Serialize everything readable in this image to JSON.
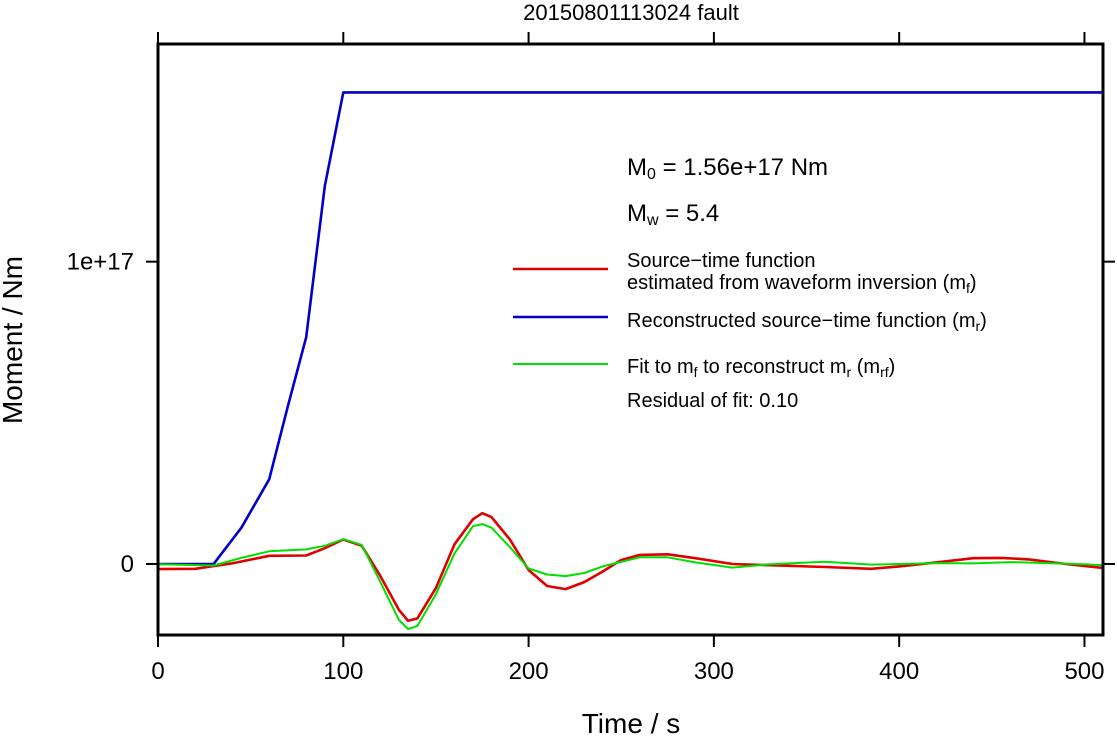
{
  "chart_data": {
    "type": "line",
    "title": "20150801113024 fault",
    "xlabel": "Time / s",
    "ylabel": "Moment / Nm",
    "xlim": [
      0,
      510
    ],
    "ylim": [
      -2.35e+16,
      1.72e+17
    ],
    "x_ticks": [
      0,
      100,
      200,
      300,
      400,
      500
    ],
    "x_tick_labels": [
      "0",
      "100",
      "200",
      "300",
      "400",
      "500"
    ],
    "y_ticks": [
      0,
      1e+17
    ],
    "y_tick_labels": [
      "0",
      "1e+17"
    ],
    "grid": false,
    "legend_position": "right",
    "annotations": {
      "m0": {
        "symbol": "M",
        "sub": "0",
        "text": " = 1.56e+17 Nm"
      },
      "mw": {
        "symbol": "M",
        "sub": "w",
        "text": " = 5.4"
      },
      "residual": "Residual of fit: 0.10"
    },
    "legend": [
      {
        "color": "#e00000",
        "lines": [
          [
            {
              "t": "Source−time function"
            }
          ],
          [
            {
              "t": "estimated from waveform inversion (m"
            },
            {
              "t": "f",
              "sub": true
            },
            {
              "t": ")"
            }
          ]
        ]
      },
      {
        "color": "#0000c8",
        "lines": [
          [
            {
              "t": "Reconstructed source−time function (m"
            },
            {
              "t": "r",
              "sub": true
            },
            {
              "t": ")"
            }
          ]
        ]
      },
      {
        "color": "#00e000",
        "lines": [
          [
            {
              "t": "Fit to m"
            },
            {
              "t": "f",
              "sub": true
            },
            {
              "t": " to reconstruct m"
            },
            {
              "t": "r",
              "sub": true
            },
            {
              "t": " (m"
            },
            {
              "t": "rf",
              "sub": true
            },
            {
              "t": ")"
            }
          ]
        ]
      }
    ],
    "series": [
      {
        "key": "mf",
        "color": "#e00000",
        "x": [
          0,
          20,
          40,
          60,
          80,
          90,
          100,
          110,
          120,
          130,
          135,
          140,
          150,
          160,
          170,
          175,
          180,
          190,
          200,
          210,
          220,
          230,
          240,
          250,
          260,
          275,
          290,
          310,
          330,
          360,
          385,
          400,
          420,
          440,
          455,
          470,
          490,
          510
        ],
        "y": [
          -1700000000000000.0,
          -1600000000000000.0,
          200000000000000.0,
          2700000000000000.0,
          2800000000000000.0,
          5200000000000000.0,
          8100000000000000.0,
          6000000000000000.0,
          -4000000000000000.0,
          -1.52e+16,
          -1.88e+16,
          -1.8e+16,
          -8000000000000000.0,
          6500000000000000.0,
          1.48e+16,
          1.68e+16,
          1.55e+16,
          8000000000000000.0,
          -2000000000000000.0,
          -7300000000000000.0,
          -8300000000000000.0,
          -6000000000000000.0,
          -2500000000000000.0,
          1300000000000000.0,
          3000000000000000.0,
          3200000000000000.0,
          1900000000000000.0,
          0,
          -400000000000000.0,
          -1000000000000000.0,
          -1600000000000000.0,
          -800000000000000.0,
          500000000000000.0,
          1900000000000000.0,
          2000000000000000.0,
          1500000000000000.0,
          0,
          -1300000000000000.0
        ]
      },
      {
        "key": "mr",
        "color": "#0000c8",
        "x": [
          0,
          30,
          45,
          60,
          70,
          80,
          90,
          100,
          510
        ],
        "y": [
          0,
          0,
          1.2e+16,
          2.8e+16,
          5.2e+16,
          7.5e+16,
          1.25e+17,
          1.56e+17,
          1.56e+17
        ]
      },
      {
        "key": "mrf",
        "color": "#00e000",
        "x": [
          0,
          30,
          45,
          60,
          80,
          90,
          100,
          110,
          120,
          130,
          135,
          140,
          150,
          160,
          170,
          175,
          180,
          190,
          200,
          210,
          220,
          230,
          240,
          260,
          275,
          290,
          310,
          330,
          360,
          385,
          400,
          420,
          440,
          460,
          480,
          500,
          510
        ],
        "y": [
          -100000000000000.0,
          -500000000000000.0,
          2000000000000000.0,
          4200000000000000.0,
          4800000000000000.0,
          6000000000000000.0,
          8200000000000000.0,
          6300000000000000.0,
          -6000000000000000.0,
          -1.85e+16,
          -2.15e+16,
          -2.05e+16,
          -1e+16,
          3500000000000000.0,
          1.25e+16,
          1.32e+16,
          1.2e+16,
          5500000000000000.0,
          -1500000000000000.0,
          -3500000000000000.0,
          -4000000000000000.0,
          -3000000000000000.0,
          -800000000000000.0,
          2200000000000000.0,
          2200000000000000.0,
          500000000000000.0,
          -1200000000000000.0,
          -100000000000000.0,
          700000000000000.0,
          -200000000000000.0,
          0,
          300000000000000.0,
          200000000000000.0,
          600000000000000.0,
          300000000000000.0,
          -100000000000000.0,
          -400000000000000.0
        ]
      }
    ]
  }
}
